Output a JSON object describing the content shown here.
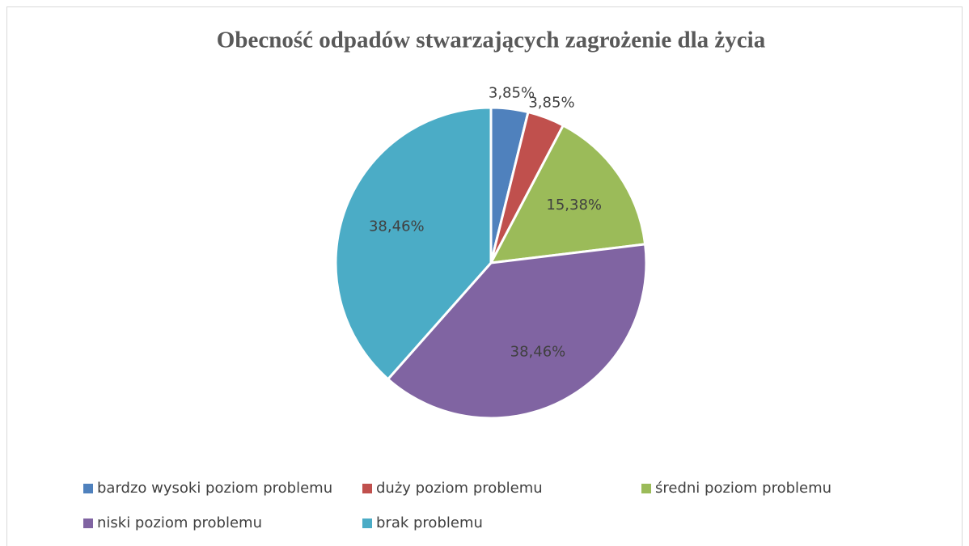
{
  "chart_data": {
    "type": "pie",
    "title": "Obecność odpadów stwarzających zagrożenie dla życia",
    "categories": [
      "bardzo wysoki poziom problemu",
      "duży poziom problemu",
      "średni poziom problemu",
      "niski poziom problemu",
      "brak problemu"
    ],
    "values": [
      3.85,
      3.85,
      15.38,
      38.46,
      38.46
    ],
    "value_labels": [
      "3,85%",
      "3,85%",
      "15,38%",
      "38,46%",
      "38,46%"
    ],
    "colors": [
      "#4f81bd",
      "#c0504d",
      "#9bbb59",
      "#8064a2",
      "#4bacc6"
    ],
    "legend": "bottom"
  }
}
